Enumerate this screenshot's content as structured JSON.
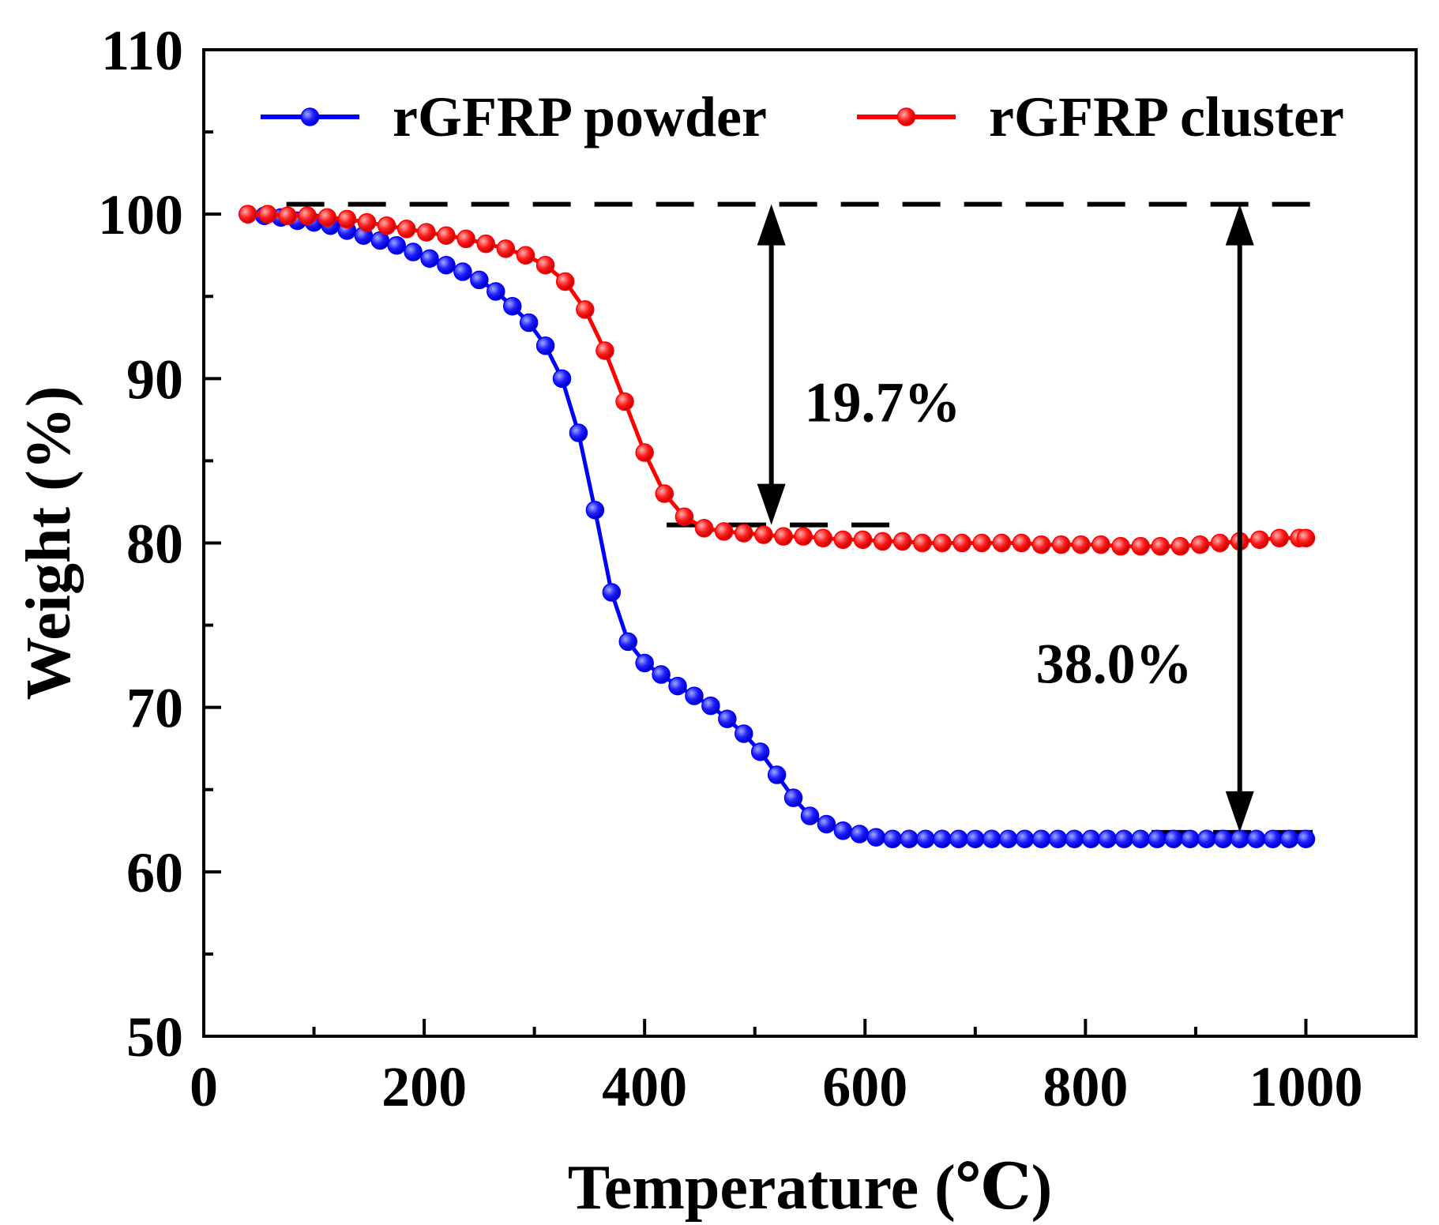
{
  "chart_data": {
    "type": "line",
    "title": "",
    "xlabel": "Temperature (℃)",
    "ylabel": "Weight (%)",
    "xlim": [
      0,
      1100
    ],
    "ylim": [
      50,
      110
    ],
    "x_ticks": [
      0,
      200,
      400,
      600,
      800,
      1000
    ],
    "x_tick_labels": [
      "0",
      "200",
      "400",
      "600",
      "800",
      "1000"
    ],
    "x_minor_ticks": [
      100,
      300,
      500,
      700,
      900
    ],
    "y_ticks": [
      50,
      60,
      70,
      80,
      90,
      100,
      110
    ],
    "y_tick_labels": [
      "50",
      "60",
      "70",
      "80",
      "90",
      "100",
      "110"
    ],
    "y_minor_ticks": [
      55,
      65,
      75,
      85,
      95,
      105
    ],
    "grid": false,
    "legend_position": "top",
    "series": [
      {
        "name": "rGFRP powder",
        "color": "#0000ff",
        "x": [
          40,
          55,
          70,
          85,
          100,
          115,
          130,
          145,
          160,
          175,
          190,
          205,
          220,
          235,
          250,
          265,
          280,
          295,
          310,
          325,
          340,
          355,
          370,
          385,
          400,
          415,
          430,
          445,
          460,
          475,
          490,
          505,
          520,
          535,
          550,
          565,
          580,
          595,
          610,
          625,
          640,
          655,
          670,
          685,
          700,
          715,
          730,
          745,
          760,
          775,
          790,
          805,
          820,
          835,
          850,
          865,
          880,
          895,
          910,
          925,
          940,
          955,
          970,
          985,
          1000
        ],
        "y": [
          100.0,
          99.9,
          99.8,
          99.6,
          99.5,
          99.3,
          99.0,
          98.7,
          98.4,
          98.1,
          97.7,
          97.3,
          96.9,
          96.5,
          96.0,
          95.3,
          94.4,
          93.4,
          92.0,
          90.0,
          86.7,
          82.0,
          77.0,
          74.0,
          72.7,
          72.0,
          71.3,
          70.7,
          70.1,
          69.3,
          68.4,
          67.3,
          65.9,
          64.5,
          63.4,
          62.9,
          62.5,
          62.3,
          62.1,
          62.0,
          62.0,
          62.0,
          62.0,
          62.0,
          62.0,
          62.0,
          62.0,
          62.0,
          62.0,
          62.0,
          62.0,
          62.0,
          62.0,
          62.0,
          62.0,
          62.0,
          62.0,
          62.0,
          62.0,
          62.0,
          62.0,
          62.0,
          62.0,
          62.0,
          62.0
        ]
      },
      {
        "name": "rGFRP cluster",
        "color": "#ff0000",
        "x": [
          40,
          58,
          76,
          94,
          112,
          130,
          148,
          166,
          184,
          202,
          220,
          238,
          256,
          274,
          292,
          310,
          328,
          346,
          364,
          382,
          400,
          418,
          436,
          454,
          472,
          490,
          508,
          526,
          544,
          562,
          580,
          598,
          616,
          634,
          652,
          670,
          688,
          706,
          724,
          742,
          760,
          778,
          796,
          814,
          832,
          850,
          868,
          886,
          904,
          922,
          940,
          958,
          976,
          994,
          1000
        ],
        "y": [
          100.0,
          100.0,
          99.9,
          99.9,
          99.8,
          99.7,
          99.5,
          99.3,
          99.1,
          98.9,
          98.7,
          98.5,
          98.2,
          97.9,
          97.5,
          96.9,
          95.9,
          94.2,
          91.7,
          88.6,
          85.5,
          83.0,
          81.6,
          80.9,
          80.7,
          80.6,
          80.5,
          80.4,
          80.4,
          80.3,
          80.2,
          80.2,
          80.1,
          80.1,
          80.0,
          80.0,
          80.0,
          80.0,
          80.0,
          80.0,
          79.9,
          79.9,
          79.9,
          79.9,
          79.8,
          79.8,
          79.8,
          79.8,
          79.9,
          80.0,
          80.1,
          80.2,
          80.3,
          80.3,
          80.3
        ]
      }
    ],
    "reference_lines": [
      {
        "name": "initial-level",
        "y": 100.6,
        "x_start": 75,
        "x_end": 1020
      },
      {
        "name": "cluster-residue-level",
        "y": 81.1,
        "x_start": 420,
        "x_end": 625
      },
      {
        "name": "powder-residue-level",
        "y": 62.4,
        "x_start": 860,
        "x_end": 1020
      }
    ],
    "annotations": [
      {
        "name": "cluster-loss",
        "text": "19.7%",
        "arrow_x": 515,
        "arrow_y_top": 100.6,
        "arrow_y_bottom": 81.1,
        "text_x": 545,
        "text_y": 88.6
      },
      {
        "name": "powder-loss",
        "text": "38.0%",
        "arrow_x": 940,
        "arrow_y_top": 100.6,
        "arrow_y_bottom": 62.4,
        "text_x": 755,
        "text_y": 72.7
      }
    ]
  }
}
